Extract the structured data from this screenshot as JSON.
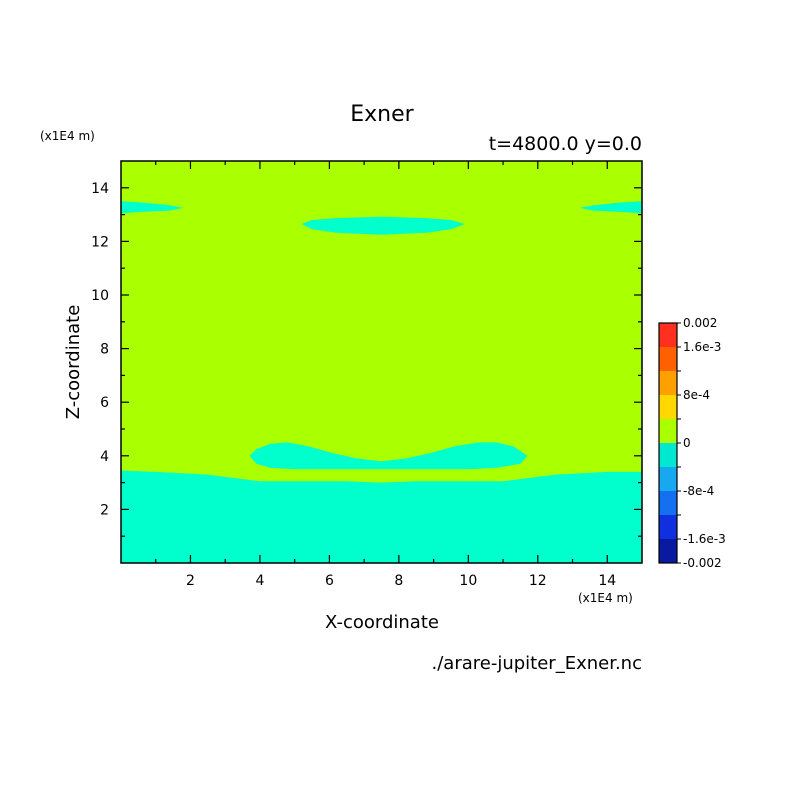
{
  "chart_data": {
    "type": "heatmap",
    "title": "Exner",
    "subtitle": "t=4800.0 y=0.0",
    "xlabel": "X-coordinate",
    "ylabel": "Z-coordinate",
    "x_unit": "(x1E4 m)",
    "y_unit": "(x1E4 m)",
    "xlim": [
      0,
      15
    ],
    "ylim": [
      0,
      15
    ],
    "x_ticks": [
      2,
      4,
      6,
      8,
      10,
      12,
      14
    ],
    "y_ticks": [
      2,
      4,
      6,
      8,
      10,
      12,
      14
    ],
    "source": "./arare-jupiter_Exner.nc",
    "colorbar": {
      "levels": [
        -0.002,
        -0.0016,
        -0.0012,
        -0.0008,
        -0.0004,
        0,
        0.0004,
        0.0008,
        0.0012,
        0.0016,
        0.002
      ],
      "colors": [
        "#0a1aa0",
        "#1030e0",
        "#1470f0",
        "#18a8f0",
        "#00e8d0",
        "#aaff00",
        "#ffd800",
        "#ffa000",
        "#ff6000",
        "#ff3020"
      ],
      "labels": [
        {
          "value": 0.002,
          "text": "0.002"
        },
        {
          "value": 0.0016,
          "text": "1.6e-3"
        },
        {
          "value": 0.0008,
          "text": "8e-4"
        },
        {
          "value": 0,
          "text": "0"
        },
        {
          "value": -0.0008,
          "text": "-8e-4"
        },
        {
          "value": -0.0016,
          "text": "-1.6e-3"
        },
        {
          "value": -0.002,
          "text": "-0.002"
        }
      ]
    },
    "background_level_color": "#aaff00",
    "regions": [
      {
        "name": "lower-layer",
        "color": "#00ffcc",
        "points": [
          [
            0,
            0
          ],
          [
            15,
            0
          ],
          [
            15,
            3.4
          ],
          [
            14,
            3.4
          ],
          [
            12.5,
            3.3
          ],
          [
            11,
            3.05
          ],
          [
            9.5,
            3.05
          ],
          [
            8.5,
            3.05
          ],
          [
            7.5,
            3.0
          ],
          [
            6.5,
            3.05
          ],
          [
            5.5,
            3.05
          ],
          [
            4,
            3.05
          ],
          [
            2.5,
            3.3
          ],
          [
            1,
            3.4
          ],
          [
            0,
            3.45
          ]
        ]
      },
      {
        "name": "double-lobe-band",
        "color": "#00ffcc",
        "points": [
          [
            3.7,
            4.0
          ],
          [
            3.9,
            4.25
          ],
          [
            4.3,
            4.45
          ],
          [
            4.8,
            4.5
          ],
          [
            5.4,
            4.35
          ],
          [
            6.1,
            4.1
          ],
          [
            6.8,
            3.9
          ],
          [
            7.5,
            3.8
          ],
          [
            8.2,
            3.9
          ],
          [
            8.9,
            4.1
          ],
          [
            9.6,
            4.35
          ],
          [
            10.3,
            4.5
          ],
          [
            10.8,
            4.5
          ],
          [
            11.3,
            4.35
          ],
          [
            11.7,
            4.0
          ],
          [
            11.5,
            3.7
          ],
          [
            10.8,
            3.55
          ],
          [
            10,
            3.5
          ],
          [
            9,
            3.5
          ],
          [
            8,
            3.5
          ],
          [
            7.5,
            3.5
          ],
          [
            7,
            3.5
          ],
          [
            6,
            3.5
          ],
          [
            5,
            3.5
          ],
          [
            4.3,
            3.55
          ],
          [
            3.9,
            3.7
          ]
        ]
      },
      {
        "name": "upper-lens",
        "color": "#00ffcc",
        "points": [
          [
            5.2,
            12.65
          ],
          [
            5.5,
            12.8
          ],
          [
            6.2,
            12.87
          ],
          [
            7,
            12.9
          ],
          [
            7.5,
            12.92
          ],
          [
            8,
            12.9
          ],
          [
            8.8,
            12.87
          ],
          [
            9.5,
            12.8
          ],
          [
            9.9,
            12.65
          ],
          [
            9.5,
            12.45
          ],
          [
            8.8,
            12.32
          ],
          [
            7.5,
            12.25
          ],
          [
            6.2,
            12.32
          ],
          [
            5.5,
            12.45
          ]
        ]
      },
      {
        "name": "left-edge-sliver",
        "color": "#00ffcc",
        "points": [
          [
            0,
            13.5
          ],
          [
            0.6,
            13.45
          ],
          [
            1.4,
            13.35
          ],
          [
            1.8,
            13.25
          ],
          [
            1.4,
            13.15
          ],
          [
            0.6,
            13.1
          ],
          [
            0,
            13.05
          ]
        ]
      },
      {
        "name": "right-edge-sliver",
        "color": "#00ffcc",
        "points": [
          [
            15,
            13.5
          ],
          [
            14.4,
            13.45
          ],
          [
            13.6,
            13.35
          ],
          [
            13.2,
            13.25
          ],
          [
            13.6,
            13.15
          ],
          [
            14.4,
            13.1
          ],
          [
            15,
            13.05
          ]
        ]
      }
    ]
  }
}
